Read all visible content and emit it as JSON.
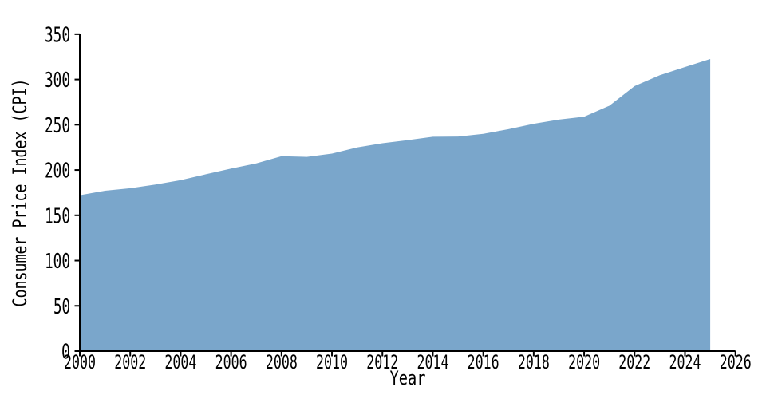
{
  "chart_data": {
    "type": "area",
    "title": "",
    "xlabel": "Year",
    "ylabel": "Consumer Price Index (CPI)",
    "x": [
      2000,
      2001,
      2002,
      2003,
      2004,
      2005,
      2006,
      2007,
      2008,
      2009,
      2010,
      2011,
      2012,
      2013,
      2014,
      2015,
      2016,
      2017,
      2018,
      2019,
      2020,
      2021,
      2022,
      2023,
      2024,
      2025
    ],
    "series": [
      {
        "name": "CPI",
        "values": [
          172.2,
          177.1,
          179.9,
          184.0,
          188.9,
          195.3,
          201.6,
          207.3,
          215.3,
          214.5,
          218.1,
          224.9,
          229.6,
          233.0,
          236.7,
          237.0,
          240.0,
          245.1,
          251.1,
          255.7,
          258.8,
          271.0,
          292.7,
          304.7,
          313.7,
          322.6
        ]
      }
    ],
    "xlim": [
      2000,
      2026
    ],
    "ylim": [
      0,
      350
    ],
    "xticks": [
      2000,
      2002,
      2004,
      2006,
      2008,
      2010,
      2012,
      2014,
      2016,
      2018,
      2020,
      2022,
      2024,
      2026
    ],
    "yticks": [
      0,
      50,
      100,
      150,
      200,
      250,
      300,
      350
    ],
    "grid": false,
    "legend": "none",
    "fill_color": "#7aa6cb",
    "axis_color": "#000000",
    "text_color": "#000000",
    "background_color": "#ffffff"
  }
}
